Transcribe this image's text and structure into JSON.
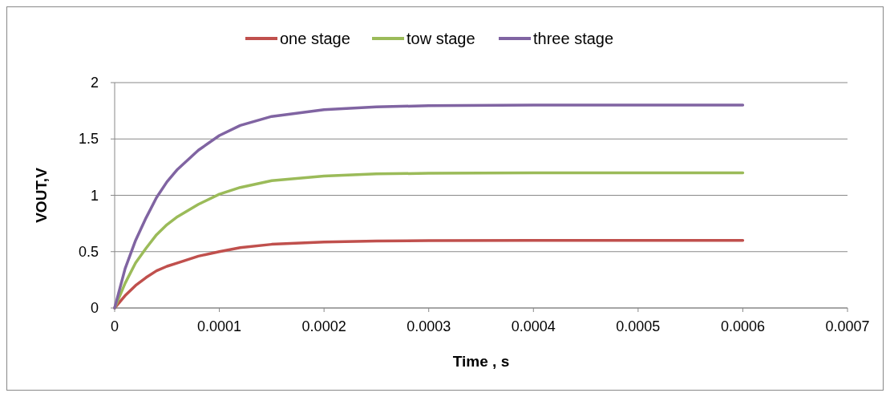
{
  "chart_data": {
    "type": "line",
    "xlabel": "Time , s",
    "ylabel": "VOUT,V",
    "x": [
      0,
      1e-05,
      2e-05,
      3e-05,
      4e-05,
      5e-05,
      6e-05,
      8e-05,
      0.0001,
      0.00012,
      0.00015,
      0.0002,
      0.00025,
      0.0003,
      0.0004,
      0.0005,
      0.0006
    ],
    "series": [
      {
        "name": "one stage",
        "color": "#c0504d",
        "values": [
          0,
          0.11,
          0.2,
          0.27,
          0.33,
          0.37,
          0.4,
          0.46,
          0.5,
          0.535,
          0.565,
          0.585,
          0.595,
          0.598,
          0.6,
          0.6,
          0.6
        ]
      },
      {
        "name": "tow stage",
        "color": "#9bbb59",
        "values": [
          0,
          0.22,
          0.4,
          0.53,
          0.65,
          0.74,
          0.81,
          0.92,
          1.01,
          1.07,
          1.13,
          1.17,
          1.19,
          1.195,
          1.2,
          1.2,
          1.2
        ]
      },
      {
        "name": "three stage",
        "color": "#8064a2",
        "values": [
          0,
          0.35,
          0.6,
          0.8,
          0.98,
          1.12,
          1.23,
          1.4,
          1.53,
          1.62,
          1.7,
          1.76,
          1.785,
          1.795,
          1.8,
          1.8,
          1.8
        ]
      }
    ],
    "xlim": [
      0,
      0.0007
    ],
    "xticks": [
      0,
      0.0001,
      0.0002,
      0.0003,
      0.0004,
      0.0005,
      0.0006,
      0.0007
    ],
    "ylim": [
      0,
      2
    ],
    "yticks": [
      0,
      0.5,
      1,
      1.5,
      2
    ],
    "grid": "y",
    "legend": "top",
    "marker": "none",
    "line_style": "solid"
  }
}
